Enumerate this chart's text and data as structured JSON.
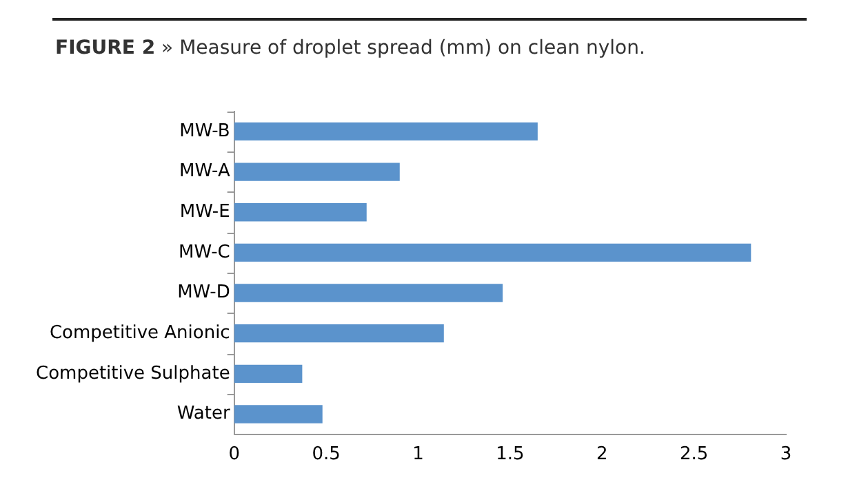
{
  "chart_data": {
    "type": "bar",
    "orientation": "horizontal",
    "title": "FIGURE 2",
    "subtitle": "» Measure of droplet spread (mm) on clean nylon.",
    "categories": [
      "MW-B",
      "MW-A",
      "MW-E",
      "MW-C",
      "MW-D",
      "Competitive Anionic",
      "Competitive Sulphate",
      "Water"
    ],
    "values": [
      1.65,
      0.9,
      0.72,
      2.81,
      1.46,
      1.14,
      0.37,
      0.48
    ],
    "color": "#5b93cc",
    "xlim": [
      0,
      3
    ],
    "xticks": [
      0,
      0.5,
      1,
      1.5,
      2,
      2.5,
      3
    ],
    "grid": false,
    "legend": false
  }
}
